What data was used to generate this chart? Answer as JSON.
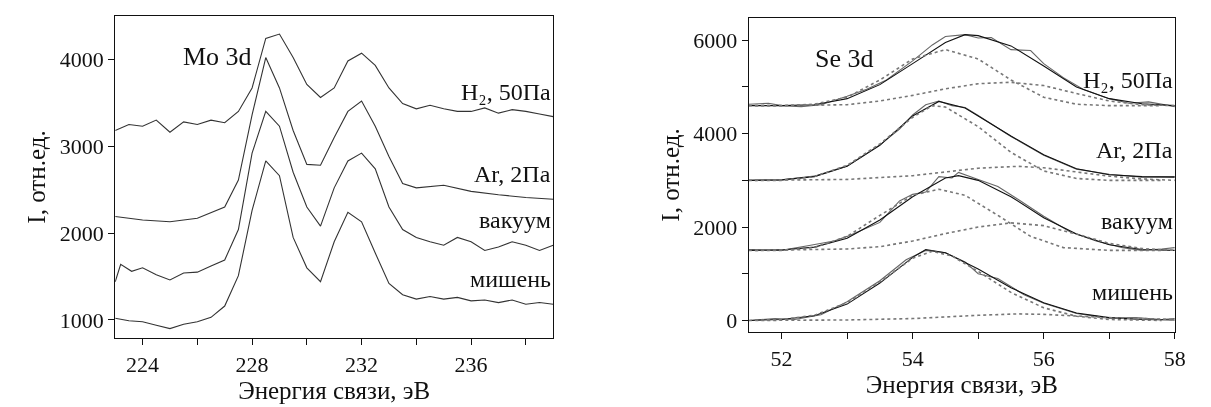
{
  "chart_data": [
    {
      "type": "line",
      "annotations": [
        "Mo 3d"
      ],
      "xlabel": "Энергия связи, эВ",
      "ylabel": "I, отн.ед.",
      "xlim": [
        223,
        239
      ],
      "ylim": [
        790,
        4500
      ],
      "xticks": [
        224,
        {
          "value": 226,
          "label": null
        },
        228,
        {
          "value": 230,
          "label": null
        },
        232,
        {
          "value": 234,
          "label": null
        },
        236,
        {
          "value": 238,
          "label": null
        }
      ],
      "yticks": [
        1000,
        2000,
        3000,
        4000
      ],
      "series": [
        {
          "name": "H₂, 50Па",
          "color": "#333333",
          "x": [
            223,
            223.5,
            224,
            224.5,
            225,
            225.5,
            226,
            226.5,
            227,
            227.5,
            228,
            228.5,
            229,
            229.5,
            230,
            230.5,
            231,
            231.5,
            232,
            232.5,
            233,
            233.5,
            234,
            234.5,
            235,
            235.5,
            236,
            236.5,
            237,
            237.5,
            238,
            238.5,
            239
          ],
          "values": [
            3180,
            3250,
            3230,
            3300,
            3160,
            3280,
            3250,
            3300,
            3270,
            3400,
            3670,
            4240,
            4290,
            4020,
            3710,
            3560,
            3670,
            3980,
            4070,
            3930,
            3670,
            3490,
            3430,
            3470,
            3430,
            3400,
            3400,
            3440,
            3380,
            3420,
            3400,
            3370,
            3340
          ]
        },
        {
          "name": "Ar, 2Па",
          "color": "#333333",
          "x": [
            223,
            224,
            225,
            226,
            227,
            227.5,
            228,
            228.5,
            229,
            229.5,
            230,
            230.5,
            231,
            231.5,
            232,
            232.5,
            233,
            233.5,
            234,
            235,
            236,
            237,
            238,
            239
          ],
          "values": [
            2190,
            2150,
            2130,
            2170,
            2300,
            2610,
            3360,
            4020,
            3670,
            3180,
            2790,
            2780,
            3100,
            3400,
            3520,
            3230,
            2880,
            2570,
            2520,
            2550,
            2480,
            2440,
            2410,
            2390
          ]
        },
        {
          "name": "вакуум",
          "color": "#333333",
          "x": [
            223,
            223.2,
            223.6,
            224,
            224.5,
            225,
            225.5,
            226,
            226.5,
            227,
            227.5,
            228,
            228.5,
            229,
            229.5,
            230,
            230.5,
            231,
            231.5,
            232,
            232.5,
            233,
            233.5,
            234,
            234.5,
            235,
            235.5,
            236,
            236.5,
            237,
            237.5,
            238,
            238.5,
            239
          ],
          "values": [
            1440,
            1640,
            1560,
            1600,
            1520,
            1460,
            1540,
            1550,
            1620,
            1690,
            2040,
            2920,
            3400,
            3230,
            2700,
            2300,
            2080,
            2520,
            2830,
            2920,
            2740,
            2300,
            2040,
            1950,
            1900,
            1860,
            1950,
            1900,
            1800,
            1840,
            1900,
            1860,
            1800,
            1860
          ]
        },
        {
          "name": "мишень",
          "color": "#333333",
          "x": [
            223,
            223.5,
            224,
            224.5,
            225,
            225.5,
            226,
            226.5,
            227,
            227.5,
            228,
            228.5,
            229,
            229.5,
            230,
            230.5,
            231,
            231.5,
            232,
            232.5,
            233,
            233.5,
            234,
            234.5,
            235,
            235.5,
            236,
            236.5,
            237,
            237.5,
            238,
            238.5,
            239
          ],
          "values": [
            1020,
            990,
            980,
            940,
            900,
            950,
            980,
            1030,
            1160,
            1510,
            2260,
            2830,
            2660,
            1950,
            1600,
            1440,
            1900,
            2240,
            2130,
            1770,
            1420,
            1290,
            1240,
            1270,
            1240,
            1260,
            1220,
            1230,
            1200,
            1230,
            1180,
            1200,
            1180
          ]
        }
      ]
    },
    {
      "type": "line",
      "annotations": [
        "Se 3d"
      ],
      "xlabel": "Энергия связи, эВ",
      "ylabel": "I, отн.ед.",
      "xlim": [
        51.5,
        58
      ],
      "ylim": [
        -250,
        6480
      ],
      "xticks": [
        52,
        {
          "value": 53,
          "label": null
        },
        54,
        {
          "value": 55,
          "label": null
        },
        56,
        {
          "value": 57,
          "label": null
        },
        58
      ],
      "yticks": [
        0,
        {
          "value": 1000,
          "label": null
        },
        2000,
        {
          "value": 3000,
          "label": null
        },
        4000,
        {
          "value": 5000,
          "label": null
        },
        6000
      ],
      "series": [
        {
          "name": "H₂, 50Па",
          "color": "#666666",
          "x": [
            51.5,
            51.8,
            52,
            52.3,
            52.6,
            53,
            53.3,
            53.6,
            54,
            54.3,
            54.5,
            54.8,
            55,
            55.2,
            55.5,
            55.8,
            56,
            56.3,
            56.6,
            57,
            57.3,
            57.6,
            58
          ],
          "values": [
            4630,
            4650,
            4600,
            4580,
            4620,
            4800,
            4950,
            5150,
            5560,
            5900,
            6080,
            6120,
            6050,
            6060,
            5800,
            5780,
            5500,
            5200,
            4950,
            4750,
            4650,
            4680,
            4580
          ]
        },
        {
          "color": "#111111",
          "x": [
            51.5,
            52,
            52.5,
            53,
            53.5,
            54,
            54.5,
            54.8,
            55,
            55.5,
            56,
            56.5,
            57,
            57.5,
            58
          ],
          "values": [
            4600,
            4600,
            4620,
            4750,
            5050,
            5500,
            5950,
            6120,
            6100,
            5880,
            5450,
            5000,
            4750,
            4640,
            4600
          ]
        },
        {
          "color": "#777777",
          "line_style": "dotted",
          "x": [
            51.5,
            52,
            52.5,
            53,
            53.5,
            54,
            54.5,
            55,
            55.5,
            56,
            56.5,
            57,
            57.8
          ],
          "values": [
            4600,
            4600,
            4630,
            4780,
            5150,
            5600,
            5800,
            5600,
            5150,
            4780,
            4630,
            4600,
            4600
          ]
        },
        {
          "color": "#777777",
          "line_style": "dotted",
          "x": [
            51.6,
            52,
            53,
            53.5,
            54,
            54.5,
            55,
            55.5,
            56,
            56.5,
            57,
            57.5,
            58
          ],
          "values": [
            4600,
            4600,
            4620,
            4700,
            4820,
            4960,
            5070,
            5100,
            5030,
            4860,
            4700,
            4620,
            4600
          ]
        },
        {
          "name": "Ar, 2Па",
          "color": "#666666",
          "x": [
            51.5,
            52,
            52.5,
            53,
            53.5,
            53.8,
            54,
            54.2,
            54.4,
            54.6,
            54.8,
            55,
            55.5,
            56,
            56.5,
            57,
            57.5,
            58
          ],
          "values": [
            3000,
            3010,
            3090,
            3310,
            3760,
            4100,
            4400,
            4620,
            4700,
            4600,
            4560,
            4390,
            3940,
            3540,
            3240,
            3130,
            3070,
            3080
          ]
        },
        {
          "color": "#111111",
          "x": [
            51.5,
            52,
            52.5,
            53,
            53.5,
            54,
            54.4,
            54.8,
            55,
            55.5,
            56,
            56.5,
            57,
            57.5,
            58
          ],
          "values": [
            3000,
            3010,
            3080,
            3300,
            3750,
            4380,
            4690,
            4550,
            4380,
            3950,
            3550,
            3250,
            3120,
            3080,
            3070
          ]
        },
        {
          "color": "#777777",
          "line_style": "dotted",
          "x": [
            51.5,
            52,
            52.5,
            53,
            53.5,
            54,
            54.3,
            54.5,
            55,
            55.5,
            56,
            56.5,
            57,
            57.8
          ],
          "values": [
            3000,
            3000,
            3080,
            3320,
            3780,
            4350,
            4600,
            4570,
            4150,
            3600,
            3200,
            3040,
            3000,
            3000
          ]
        },
        {
          "color": "#777777",
          "line_style": "dotted",
          "x": [
            51.6,
            53,
            54,
            54.5,
            55,
            55.6,
            56,
            56.5,
            57,
            57.5,
            58
          ],
          "values": [
            3000,
            3020,
            3100,
            3180,
            3260,
            3300,
            3270,
            3180,
            3090,
            3030,
            3000
          ]
        },
        {
          "name": "вакуум",
          "color": "#666666",
          "x": [
            51.5,
            52,
            52.4,
            52.8,
            53,
            53.5,
            53.8,
            54,
            54.2,
            54.4,
            54.6,
            54.7,
            55,
            55.3,
            55.6,
            56,
            56.4,
            56.8,
            57.2,
            57.5,
            57.8,
            58
          ],
          "values": [
            1520,
            1500,
            1600,
            1700,
            1800,
            2100,
            2560,
            2700,
            2750,
            3080,
            3050,
            3170,
            3020,
            2870,
            2600,
            2230,
            1900,
            1700,
            1560,
            1500,
            1530,
            1560
          ]
        },
        {
          "color": "#111111",
          "x": [
            51.5,
            52,
            52.5,
            53,
            53.5,
            54,
            54.5,
            54.7,
            55,
            55.5,
            56,
            56.5,
            57,
            57.5,
            58
          ],
          "values": [
            1500,
            1510,
            1570,
            1760,
            2150,
            2650,
            3050,
            3100,
            3000,
            2650,
            2200,
            1850,
            1620,
            1520,
            1500
          ]
        },
        {
          "color": "#777777",
          "line_style": "dotted",
          "x": [
            51.5,
            52,
            52.5,
            53,
            53.5,
            54,
            54.4,
            54.8,
            55.3,
            55.8,
            56.3,
            57,
            57.8
          ],
          "values": [
            1500,
            1500,
            1560,
            1800,
            2250,
            2680,
            2810,
            2680,
            2250,
            1800,
            1560,
            1500,
            1500
          ]
        },
        {
          "color": "#777777",
          "line_style": "dotted",
          "x": [
            51.6,
            53,
            53.5,
            54,
            54.5,
            55,
            55.5,
            56,
            56.5,
            57,
            57.5,
            58
          ],
          "values": [
            1500,
            1530,
            1580,
            1700,
            1860,
            2000,
            2090,
            2030,
            1850,
            1650,
            1540,
            1500
          ]
        },
        {
          "name": "мишень",
          "color": "#666666",
          "x": [
            51.5,
            51.9,
            52.2,
            52.6,
            53,
            53.5,
            53.9,
            54.2,
            54.5,
            54.8,
            55,
            55.3,
            55.7,
            56,
            56.5,
            57,
            57.4,
            57.8,
            58
          ],
          "values": [
            0,
            40,
            20,
            120,
            400,
            850,
            1300,
            1500,
            1450,
            1250,
            1000,
            900,
            550,
            370,
            150,
            50,
            60,
            20,
            40
          ]
        },
        {
          "color": "#111111",
          "x": [
            51.5,
            52,
            52.5,
            53,
            53.5,
            54,
            54.2,
            54.5,
            55,
            55.5,
            56,
            56.5,
            57,
            57.5,
            58
          ],
          "values": [
            0,
            20,
            100,
            350,
            800,
            1350,
            1520,
            1450,
            1100,
            700,
            380,
            160,
            60,
            20,
            10
          ]
        },
        {
          "color": "#777777",
          "line_style": "dotted",
          "x": [
            51.5,
            52,
            52.5,
            53,
            53.5,
            54,
            54.3,
            54.6,
            55,
            55.5,
            56,
            56.5,
            57,
            57.8
          ],
          "values": [
            0,
            20,
            110,
            380,
            830,
            1330,
            1480,
            1380,
            1050,
            600,
            270,
            90,
            20,
            0
          ]
        },
        {
          "color": "#777777",
          "line_style": "dotted",
          "x": [
            51.6,
            53,
            54,
            55,
            55.6,
            56,
            57,
            58
          ],
          "values": [
            0,
            10,
            40,
            110,
            140,
            130,
            60,
            20
          ]
        }
      ]
    }
  ]
}
